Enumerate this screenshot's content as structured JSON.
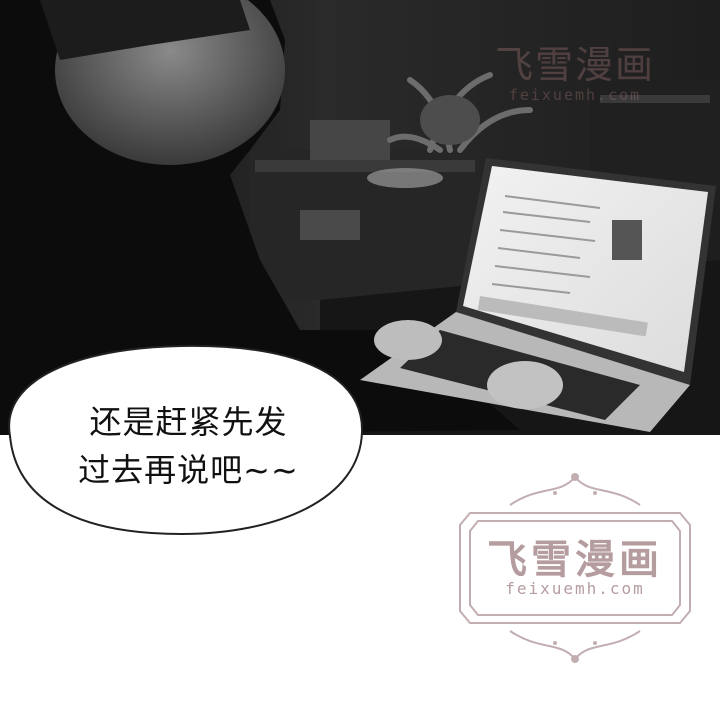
{
  "bubble": {
    "line1": "还是赶紧先发",
    "line2": "过去再说吧~~"
  },
  "watermark_top": {
    "title": "飞雪漫画",
    "url": "feixuemh.com"
  },
  "watermark_bottom": {
    "title": "飞雪漫画",
    "url": "feixuemh.com"
  },
  "colors": {
    "panel_bg": "#1b1b1b",
    "watermark": "#b59c9f",
    "bubble_outline": "#222222"
  }
}
